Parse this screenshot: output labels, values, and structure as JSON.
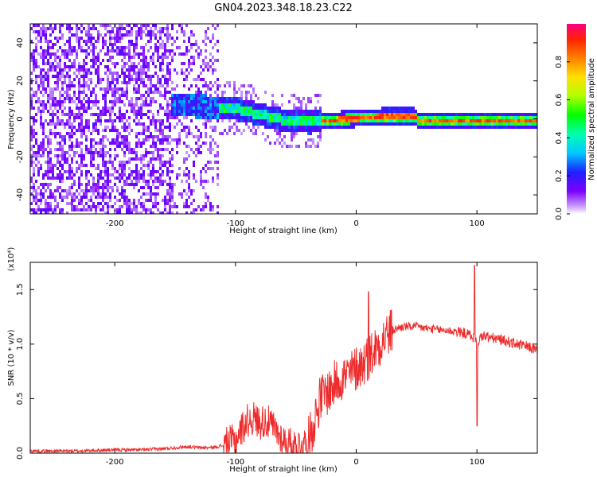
{
  "title": "GN04.2023.348.18.23.C22",
  "colors": {
    "snr_line": "#ee2a2a",
    "axis": "#000000",
    "background": "#ffffff"
  },
  "chart_data": [
    {
      "type": "heatmap",
      "xlabel": "Height of straight line (km)",
      "ylabel": "Frequency (Hz)",
      "xlim": [
        -270,
        150
      ],
      "ylim": [
        -50,
        50
      ],
      "xticks": [
        -200,
        -100,
        0,
        100
      ],
      "yticks": [
        -40,
        -20,
        0,
        20,
        40
      ],
      "colorbar": {
        "label": "Normalized spectral amplitude",
        "range": [
          0,
          1
        ],
        "ticks": [
          "0.0",
          "0.2",
          "0.4",
          "0.6",
          "0.8"
        ],
        "tick_values": [
          0,
          0.2,
          0.4,
          0.6,
          0.8
        ],
        "colormap": "rainbow (purple low to red high)"
      },
      "ridge": [
        {
          "x": -150,
          "y": 8
        },
        {
          "x": -120,
          "y": 7
        },
        {
          "x": -100,
          "y": 6
        },
        {
          "x": -80,
          "y": 3
        },
        {
          "x": -60,
          "y": 0
        },
        {
          "x": -40,
          "y": -1
        },
        {
          "x": -20,
          "y": 0
        },
        {
          "x": 0,
          "y": 1
        },
        {
          "x": 20,
          "y": 2
        },
        {
          "x": 48,
          "y": 2
        },
        {
          "x": 50,
          "y": 0
        },
        {
          "x": 100,
          "y": 0
        },
        {
          "x": 150,
          "y": 0
        }
      ]
    },
    {
      "type": "line",
      "xlabel": "Height of straight line (km)",
      "ylabel": "SNR (10 * v/v)",
      "scale_label": "(x10⁴)",
      "xlim": [
        -270,
        150
      ],
      "ylim": [
        0,
        1.75
      ],
      "xticks": [
        -200,
        -100,
        0,
        100
      ],
      "yticks": [
        "0.0",
        "0.5",
        "1.0",
        "1.5"
      ],
      "ytick_values": [
        0,
        0.5,
        1.0,
        1.5
      ],
      "series": [
        {
          "x": [
            -270,
            -250,
            -230,
            -200,
            -180,
            -160,
            -150,
            -140,
            -130,
            -120,
            -110,
            -100,
            -95,
            -90,
            -85,
            -80,
            -75,
            -70,
            -65,
            -60,
            -55,
            -50,
            -45,
            -40,
            -35,
            -30,
            -25,
            -20,
            -15,
            -10,
            -5,
            0,
            5,
            10,
            15,
            20,
            25,
            30,
            35,
            40,
            50,
            60,
            70,
            80,
            90,
            95,
            98,
            100,
            102,
            105,
            110,
            120,
            130,
            140,
            150
          ],
          "y": [
            0.02,
            0.02,
            0.02,
            0.03,
            0.03,
            0.04,
            0.05,
            0.06,
            0.05,
            0.05,
            0.07,
            0.12,
            0.22,
            0.3,
            0.32,
            0.28,
            0.3,
            0.25,
            0.18,
            0.12,
            0.08,
            0.07,
            0.08,
            0.1,
            0.28,
            0.5,
            0.55,
            0.6,
            0.68,
            0.7,
            0.72,
            0.78,
            0.82,
            0.88,
            0.95,
            1.02,
            1.08,
            1.12,
            1.15,
            1.16,
            1.16,
            1.14,
            1.13,
            1.12,
            1.1,
            1.08,
            1.05,
            1.0,
            1.05,
            1.08,
            1.06,
            1.04,
            1.01,
            0.98,
            0.95
          ]
        }
      ],
      "spikes": [
        {
          "x": 10,
          "y": 1.48
        },
        {
          "x": 98,
          "y": 1.72
        },
        {
          "x": 100,
          "y": 0.25
        }
      ]
    }
  ]
}
